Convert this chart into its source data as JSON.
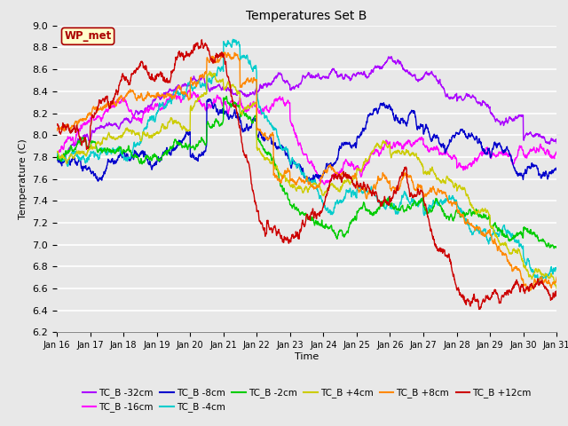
{
  "title": "Temperatures Set B",
  "xlabel": "Time",
  "ylabel": "Temperature (C)",
  "ylim": [
    6.2,
    9.0
  ],
  "xlim": [
    0,
    15
  ],
  "background_color": "#e8e8e8",
  "grid_color": "white",
  "x_tick_labels": [
    "Jan 16",
    "Jan 17",
    "Jan 18",
    "Jan 19",
    "Jan 20",
    "Jan 21",
    "Jan 22",
    "Jan 23",
    "Jan 24",
    "Jan 25",
    "Jan 26",
    "Jan 27",
    "Jan 28",
    "Jan 29",
    "Jan 30",
    "Jan 31"
  ],
  "series_order": [
    "TC_B -32cm",
    "TC_B -16cm",
    "TC_B -8cm",
    "TC_B -4cm",
    "TC_B -2cm",
    "TC_B +4cm",
    "TC_B +8cm",
    "TC_B +12cm"
  ],
  "series_colors": {
    "TC_B -32cm": "#aa00ff",
    "TC_B -16cm": "#ff00ff",
    "TC_B -8cm": "#0000cc",
    "TC_B -4cm": "#00cccc",
    "TC_B -2cm": "#00cc00",
    "TC_B +4cm": "#cccc00",
    "TC_B +8cm": "#ff8800",
    "TC_B +12cm": "#cc0000"
  },
  "lw": 1.0,
  "wp_met_box_color": "#ffffcc",
  "wp_met_border_color": "#aa0000",
  "wp_met_text_color": "#aa0000"
}
